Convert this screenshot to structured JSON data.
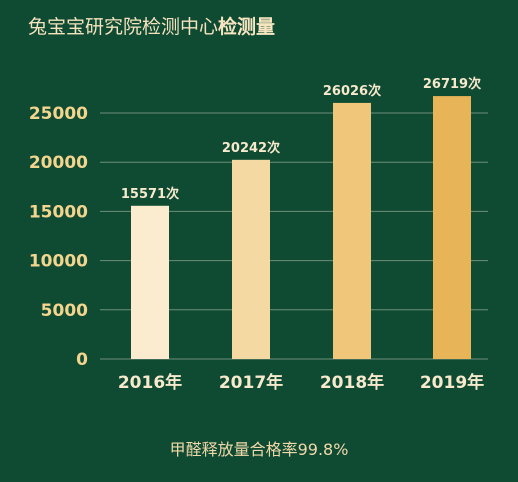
{
  "header": {
    "title_main": "兔宝宝研究院检测中心",
    "title_bold": "检测量"
  },
  "footer": {
    "note": "甲醛释放量合格率99.8%"
  },
  "colors": {
    "background": "#0f4a33",
    "grid": "#6f8f79",
    "axis_text": "#f3d58e",
    "label_text": "#f6e9cc",
    "bars": [
      "#fbecd0",
      "#f5d9a3",
      "#efc67a",
      "#e8b458"
    ]
  },
  "chart_data": {
    "type": "bar",
    "categories": [
      "2016年",
      "2017年",
      "2018年",
      "2019年"
    ],
    "values": [
      15571,
      20242,
      26026,
      26719
    ],
    "data_labels": [
      "15571次",
      "20242次",
      "26026次",
      "26719次"
    ],
    "yticks": [
      0,
      5000,
      10000,
      15000,
      20000,
      25000
    ],
    "ylim": [
      0,
      30000
    ],
    "grid": true,
    "legend": "none"
  }
}
